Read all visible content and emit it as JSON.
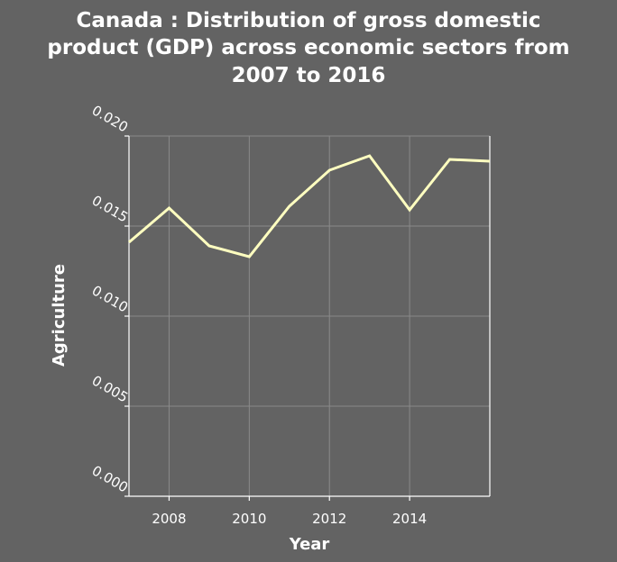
{
  "chart_data": {
    "type": "line",
    "title_lines": [
      "Canada : Distribution of gross domestic",
      "product (GDP) across economic sectors from",
      "2007 to 2016"
    ],
    "xlabel": "Year",
    "ylabel": "Agriculture",
    "xlim": [
      2007,
      2016
    ],
    "ylim": [
      0,
      0.02
    ],
    "x_ticks": [
      2008,
      2010,
      2012,
      2014
    ],
    "y_ticks": [
      "0.000",
      "0.005",
      "0.010",
      "0.015",
      "0.020"
    ],
    "grid": true,
    "line_color": "#ffffc0",
    "background": "#636363",
    "series": [
      {
        "x": [
          2007,
          2008,
          2009,
          2010,
          2011,
          2012,
          2013,
          2014,
          2015,
          2016
        ],
        "values": [
          0.0141,
          0.016,
          0.0139,
          0.0133,
          0.0161,
          0.0181,
          0.0189,
          0.0159,
          0.0187,
          0.0186
        ]
      }
    ]
  }
}
